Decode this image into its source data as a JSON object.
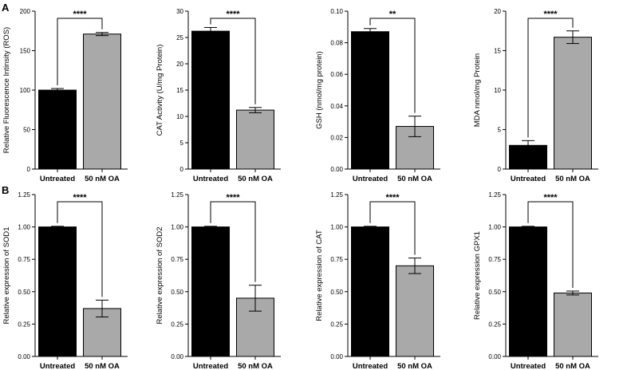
{
  "panel_labels": [
    "A",
    "B"
  ],
  "chart_data": [
    {
      "type": "bar",
      "panel": "A",
      "categories": [
        "Untreated",
        "50 nM OA"
      ],
      "values": [
        100,
        171
      ],
      "errors": [
        2,
        2
      ],
      "bar_colors": [
        "#000000",
        "#a9a9a9"
      ],
      "ylabel": "Relative Fluorescence Intinsity (ROS)",
      "ylim": [
        0,
        200
      ],
      "yticks": [
        "0",
        "50",
        "100",
        "150",
        "200"
      ],
      "significance": "****"
    },
    {
      "type": "bar",
      "panel": "A",
      "categories": [
        "Untreated",
        "50 nM OA"
      ],
      "values": [
        26.2,
        11.2
      ],
      "errors": [
        0.7,
        0.5
      ],
      "bar_colors": [
        "#000000",
        "#a9a9a9"
      ],
      "ylabel": "CAT Activity (U/mg Protein)",
      "ylim": [
        0,
        30
      ],
      "yticks": [
        "0",
        "5",
        "10",
        "15",
        "20",
        "25",
        "30"
      ],
      "significance": "****"
    },
    {
      "type": "bar",
      "panel": "A",
      "categories": [
        "Untreated",
        "50 nM OA"
      ],
      "values": [
        0.087,
        0.027
      ],
      "errors": [
        0.002,
        0.0065
      ],
      "bar_colors": [
        "#000000",
        "#a9a9a9"
      ],
      "ylabel": "GSH (nmol/mg protein)",
      "ylim": [
        0,
        0.1
      ],
      "yticks": [
        "0.00",
        "0.02",
        "0.04",
        "0.06",
        "0.08",
        "0.10"
      ],
      "significance": "**"
    },
    {
      "type": "bar",
      "panel": "A",
      "categories": [
        "Untreated",
        "50 nM OA"
      ],
      "values": [
        3.0,
        16.7
      ],
      "errors": [
        0.6,
        0.8
      ],
      "bar_colors": [
        "#000000",
        "#a9a9a9"
      ],
      "ylabel": "MDA nmol/mg Protein",
      "ylim": [
        0,
        20
      ],
      "yticks": [
        "0",
        "5",
        "10",
        "15",
        "20"
      ],
      "significance": "****"
    },
    {
      "type": "bar",
      "panel": "B",
      "categories": [
        "Untreated",
        "50 nM OA"
      ],
      "values": [
        1.0,
        0.37
      ],
      "errors": [
        0.005,
        0.065
      ],
      "bar_colors": [
        "#000000",
        "#a9a9a9"
      ],
      "ylabel": "Relative expression of SOD1",
      "ylim": [
        0,
        1.25
      ],
      "yticks": [
        "0.00",
        "0.25",
        "0.50",
        "0.75",
        "1.00",
        "1.25"
      ],
      "significance": "****"
    },
    {
      "type": "bar",
      "panel": "B",
      "categories": [
        "Untreated",
        "50 nM OA"
      ],
      "values": [
        1.0,
        0.45
      ],
      "errors": [
        0.005,
        0.1
      ],
      "bar_colors": [
        "#000000",
        "#a9a9a9"
      ],
      "ylabel": "Relative expression of SOD2",
      "ylim": [
        0,
        1.25
      ],
      "yticks": [
        "0.00",
        "0.25",
        "0.50",
        "0.75",
        "1.00",
        "1.25"
      ],
      "significance": "****"
    },
    {
      "type": "bar",
      "panel": "B",
      "categories": [
        "Untreated",
        "50 nM OA"
      ],
      "values": [
        1.0,
        0.7
      ],
      "errors": [
        0.005,
        0.06
      ],
      "bar_colors": [
        "#000000",
        "#a9a9a9"
      ],
      "ylabel": "Relative expression of CAT",
      "ylim": [
        0,
        1.25
      ],
      "yticks": [
        "0.00",
        "0.25",
        "0.50",
        "0.75",
        "1.00",
        "1.25"
      ],
      "significance": "****"
    },
    {
      "type": "bar",
      "panel": "B",
      "categories": [
        "Untreated",
        "50 nM OA"
      ],
      "values": [
        1.0,
        0.49
      ],
      "errors": [
        0.005,
        0.015
      ],
      "bar_colors": [
        "#000000",
        "#a9a9a9"
      ],
      "ylabel": "Relative expression GPX1",
      "ylim": [
        0,
        1.25
      ],
      "yticks": [
        "0.00",
        "0.25",
        "0.50",
        "0.75",
        "1.00",
        "1.25"
      ],
      "significance": "****"
    }
  ]
}
